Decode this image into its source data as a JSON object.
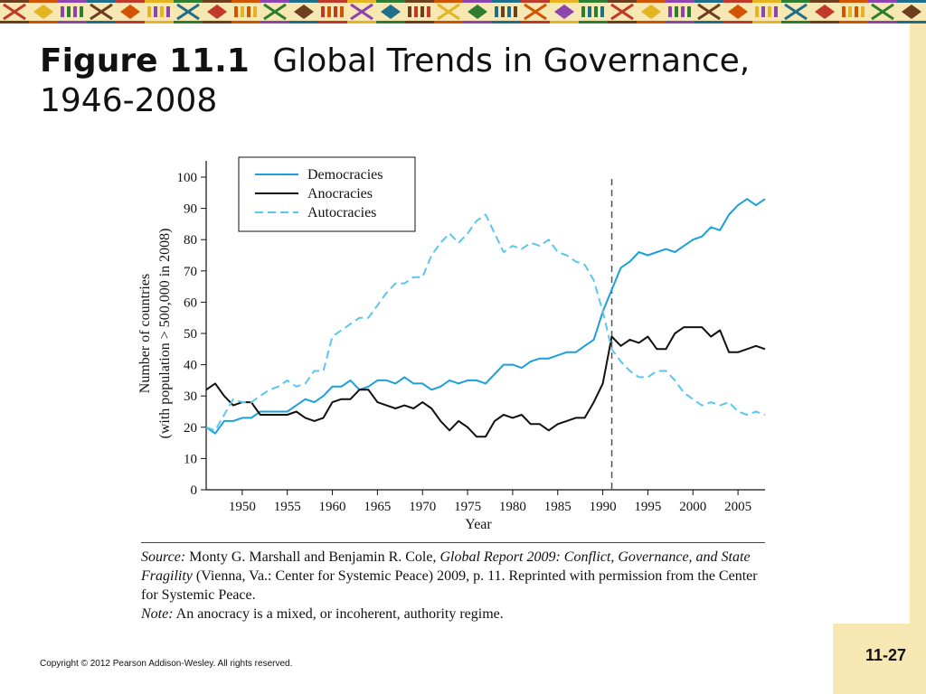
{
  "slide": {
    "title_label": "Figure 11.1",
    "title_text": "Global Trends in Governance, 1946-2008",
    "page_number": "11-27",
    "copyright": "Copyright © 2012 Pearson Addison-Wesley. All rights reserved.",
    "source_label": "Source:",
    "source_authors": "Monty G. Marshall and Benjamin R. Cole,",
    "source_work": "Global Report 2009: Conflict, Governance, and State Fragility",
    "source_rest": "(Vienna, Va.: Center for Systemic Peace) 2009, p. 11. Reprinted with permission from the Center for Systemic Peace.",
    "note_label": "Note:",
    "note_text": "An anocracy is a mixed, or incoherent, authority regime.",
    "colors": {
      "border_band": "#f6e7b3",
      "democracy": "#1aa0dc",
      "anocracy": "#111111",
      "autocracy": "#5cc6ec"
    }
  },
  "chart_data": {
    "type": "line",
    "title": "",
    "xlabel": "Year",
    "ylabel_lines": [
      "Number of countries",
      "(with population > 500,000 in 2008)"
    ],
    "xlim": [
      1946,
      2008
    ],
    "ylim": [
      0,
      100
    ],
    "xticks": [
      1950,
      1955,
      1960,
      1965,
      1970,
      1975,
      1980,
      1985,
      1990,
      1995,
      2000,
      2005
    ],
    "yticks": [
      0,
      10,
      20,
      30,
      40,
      50,
      60,
      70,
      80,
      90,
      100
    ],
    "reference_line_x": 1991,
    "legend_position": "top-left",
    "x": [
      1946,
      1947,
      1948,
      1949,
      1950,
      1951,
      1952,
      1953,
      1954,
      1955,
      1956,
      1957,
      1958,
      1959,
      1960,
      1961,
      1962,
      1963,
      1964,
      1965,
      1966,
      1967,
      1968,
      1969,
      1970,
      1971,
      1972,
      1973,
      1974,
      1975,
      1976,
      1977,
      1978,
      1979,
      1980,
      1981,
      1982,
      1983,
      1984,
      1985,
      1986,
      1987,
      1988,
      1989,
      1990,
      1991,
      1992,
      1993,
      1994,
      1995,
      1996,
      1997,
      1998,
      1999,
      2000,
      2001,
      2002,
      2003,
      2004,
      2005,
      2006,
      2007,
      2008
    ],
    "series": [
      {
        "name": "Democracies",
        "style": "solid",
        "color": "#1aa0dc",
        "values": [
          20,
          18,
          22,
          22,
          23,
          23,
          25,
          25,
          25,
          25,
          27,
          29,
          28,
          30,
          33,
          33,
          35,
          32,
          33,
          35,
          35,
          34,
          36,
          34,
          34,
          32,
          33,
          35,
          34,
          35,
          35,
          34,
          37,
          40,
          40,
          39,
          41,
          42,
          42,
          43,
          44,
          44,
          46,
          48,
          57,
          64,
          71,
          73,
          76,
          75,
          76,
          77,
          76,
          78,
          80,
          81,
          84,
          83,
          88,
          91,
          93,
          91,
          93
        ]
      },
      {
        "name": "Anocracies",
        "style": "solid",
        "color": "#111111",
        "values": [
          32,
          34,
          30,
          27,
          28,
          28,
          24,
          24,
          24,
          24,
          25,
          23,
          22,
          23,
          28,
          29,
          29,
          32,
          32,
          28,
          27,
          26,
          27,
          26,
          28,
          26,
          22,
          19,
          22,
          20,
          17,
          17,
          22,
          24,
          23,
          24,
          21,
          21,
          19,
          21,
          22,
          23,
          23,
          28,
          34,
          49,
          46,
          48,
          47,
          49,
          45,
          45,
          50,
          52,
          52,
          52,
          49,
          51,
          44,
          44,
          45,
          46,
          45
        ]
      },
      {
        "name": "Autocracies",
        "style": "dashed",
        "color": "#5cc6ec",
        "values": [
          20,
          19,
          24,
          29,
          28,
          28,
          30,
          32,
          33,
          35,
          33,
          34,
          38,
          38,
          49,
          51,
          53,
          55,
          55,
          59,
          63,
          66,
          66,
          68,
          68,
          75,
          79,
          82,
          79,
          82,
          86,
          88,
          82,
          76,
          78,
          77,
          79,
          78,
          80,
          76,
          75,
          73,
          72,
          67,
          57,
          45,
          41,
          38,
          36,
          36,
          38,
          38,
          35,
          31,
          29,
          27,
          28,
          27,
          28,
          25,
          24,
          25,
          24
        ]
      }
    ]
  }
}
